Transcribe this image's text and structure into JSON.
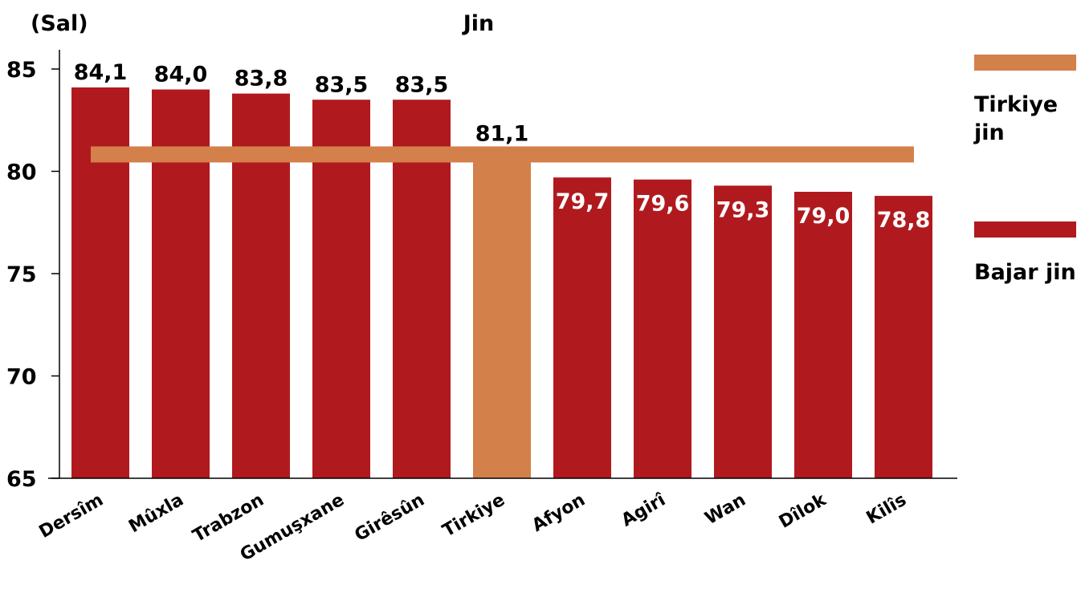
{
  "chart_data": {
    "type": "bar",
    "title": "Jin",
    "ylabel": "(Sal)",
    "xlabel": "",
    "ylim": [
      65,
      86
    ],
    "yticks": [
      65,
      70,
      75,
      80,
      85
    ],
    "grid": false,
    "legend_position": "right",
    "categories": [
      "Dersîm",
      "Mûxla",
      "Trabzon",
      "Gumuşxane",
      "Girêsûn",
      "Tirkiye",
      "Afyon",
      "Agirî",
      "Wan",
      "Dîlok",
      "Kilîs"
    ],
    "values": [
      84.1,
      84.0,
      83.8,
      83.5,
      83.5,
      81.1,
      79.7,
      79.6,
      79.3,
      79.0,
      78.8
    ],
    "value_labels": [
      "84,1",
      "84,0",
      "83,8",
      "83,5",
      "83,5",
      "81,1",
      "79,7",
      "79,6",
      "79,3",
      "79,0",
      "78,8"
    ],
    "reference_line": {
      "name": "Tirkiye jin",
      "value": 81.1
    },
    "legend": [
      {
        "label": "Tirkiye jin",
        "color": "#D4804A"
      },
      {
        "label": "Bajar jin",
        "color": "#B01A1E"
      }
    ],
    "colors": {
      "city_bar": "#B01A1E",
      "country_bar": "#D4804A",
      "reference_line": "#D4804A",
      "axis": "#000000"
    },
    "highlight_category": "Tirkiye"
  }
}
